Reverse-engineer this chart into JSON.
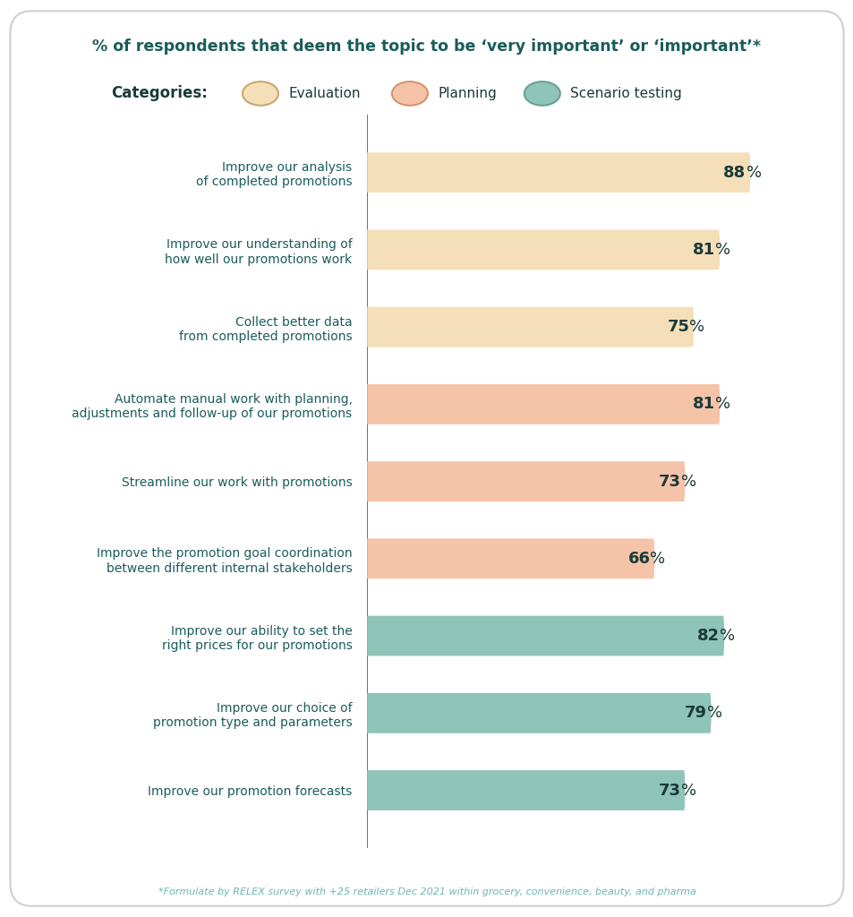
{
  "title": "% of respondents that deem the topic to be ‘very important’ or ‘important’*",
  "title_color": "#1a5c5a",
  "background_color": "#ffffff",
  "border_color": "#d0d0d0",
  "footnote": "*Formulate by RELEX survey with +25 retailers Dec 2021 within grocery, convenience, beauty, and pharma",
  "footnote_color": "#6ab5b5",
  "categories": {
    "Evaluation": {
      "color": "#f5dfb8",
      "border_color": "#c8a96e"
    },
    "Planning": {
      "color": "#f5c3a8",
      "border_color": "#d4946e"
    },
    "Scenario testing": {
      "color": "#8fc4b8",
      "border_color": "#6a9e96"
    }
  },
  "bars": [
    {
      "label": "Improve our analysis\nof completed promotions",
      "value": 88,
      "category": "Evaluation"
    },
    {
      "label": "Improve our understanding of\nhow well our promotions work",
      "value": 81,
      "category": "Evaluation"
    },
    {
      "label": "Collect better data\nfrom completed promotions",
      "value": 75,
      "category": "Evaluation"
    },
    {
      "label": "Automate manual work with planning,\nadjustments and follow-up of our promotions",
      "value": 81,
      "category": "Planning"
    },
    {
      "label": "Streamline our work with promotions",
      "value": 73,
      "category": "Planning"
    },
    {
      "label": "Improve the promotion goal coordination\nbetween different internal stakeholders",
      "value": 66,
      "category": "Planning"
    },
    {
      "label": "Improve our ability to set the\nright prices for our promotions",
      "value": 82,
      "category": "Scenario testing"
    },
    {
      "label": "Improve our choice of\npromotion type and parameters",
      "value": 79,
      "category": "Scenario testing"
    },
    {
      "label": "Improve our promotion forecasts",
      "value": 73,
      "category": "Scenario testing"
    }
  ],
  "label_color": "#1a5c5a",
  "value_color": "#1a3a3a",
  "xlim": [
    0,
    100
  ],
  "bar_height": 0.52,
  "legend_label_color": "#1a3a3a",
  "categories_label_color": "#1a3a3a",
  "bar_gap": 1.0,
  "axis_line_color": "#555555"
}
